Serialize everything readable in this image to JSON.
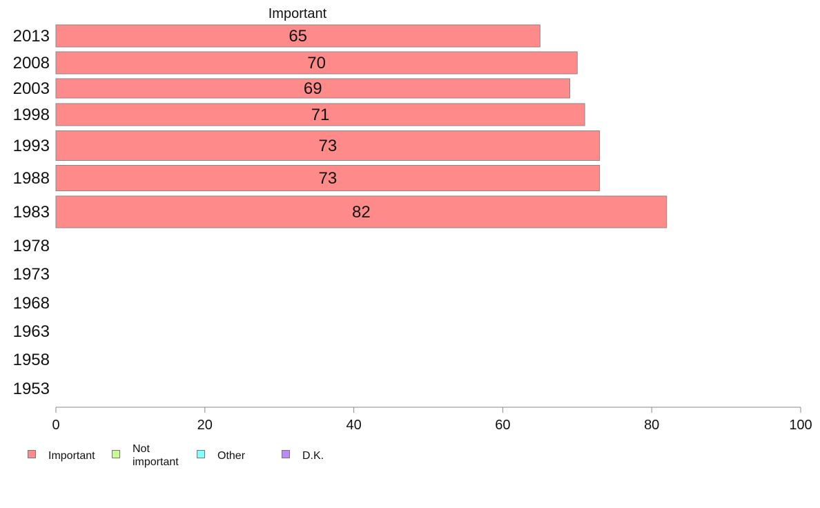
{
  "chart_data": {
    "type": "bar",
    "orientation": "horizontal",
    "stacked": true,
    "series_title": "Important",
    "categories": [
      "2013",
      "2008",
      "2003",
      "1998",
      "1993",
      "1988",
      "1983",
      "1978",
      "1973",
      "1968",
      "1963",
      "1958",
      "1953"
    ],
    "series": [
      {
        "name": "Important",
        "color": "#ff8a8a",
        "values": [
          65,
          70,
          69,
          71,
          73,
          73,
          82,
          null,
          null,
          null,
          null,
          null,
          null
        ]
      },
      {
        "name": "Not important",
        "color": "#c8ff8c",
        "values": [
          null,
          null,
          null,
          null,
          null,
          null,
          null,
          null,
          null,
          null,
          null,
          null,
          null
        ]
      },
      {
        "name": "Other",
        "color": "#80ffff",
        "values": [
          null,
          null,
          null,
          null,
          null,
          null,
          null,
          null,
          null,
          null,
          null,
          null,
          null
        ]
      },
      {
        "name": "D.K.",
        "color": "#bb88ff",
        "values": [
          null,
          null,
          null,
          null,
          null,
          null,
          null,
          null,
          null,
          null,
          null,
          null,
          null
        ]
      }
    ],
    "data_labels": [
      "65",
      "70",
      "69",
      "71",
      "73",
      "73",
      "82"
    ],
    "xlim": [
      0,
      100
    ],
    "xticks": [
      "0",
      "20",
      "40",
      "60",
      "80",
      "100"
    ],
    "grid": false,
    "legend_position": "bottom-left"
  },
  "legend": {
    "items": [
      {
        "label_lines": [
          "Important"
        ],
        "color": "#ff8a8a"
      },
      {
        "label_lines": [
          "Not",
          "important"
        ],
        "color": "#c8ff8c"
      },
      {
        "label_lines": [
          "Other"
        ],
        "color": "#80ffff"
      },
      {
        "label_lines": [
          "D.K."
        ],
        "color": "#bb88ff"
      }
    ]
  }
}
